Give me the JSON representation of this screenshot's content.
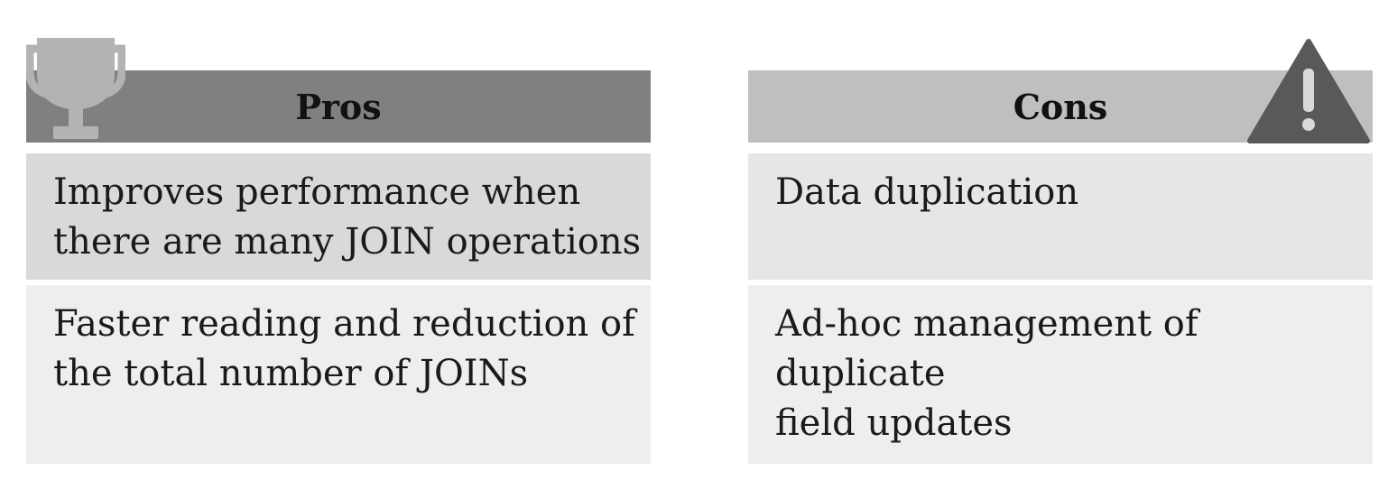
{
  "pros": {
    "title": "Pros",
    "items": [
      "Improves performance when\nthere are many JOIN operations",
      "Faster reading and reduction of\nthe total number of JOINs"
    ]
  },
  "cons": {
    "title": "Cons",
    "items": [
      "Data duplication",
      "Ad-hoc management of duplicate\nfield updates"
    ]
  },
  "icons": {
    "pros": "trophy-icon",
    "cons": "warning-icon"
  },
  "colors": {
    "pros_header": "#808080",
    "cons_header": "#bfbfbf",
    "pros_row_1": "#d9d9d9",
    "cons_row_1": "#e6e6e6",
    "row_2": "#eeeeee",
    "icon_light": "#b3b3b3",
    "icon_dark": "#595959"
  }
}
